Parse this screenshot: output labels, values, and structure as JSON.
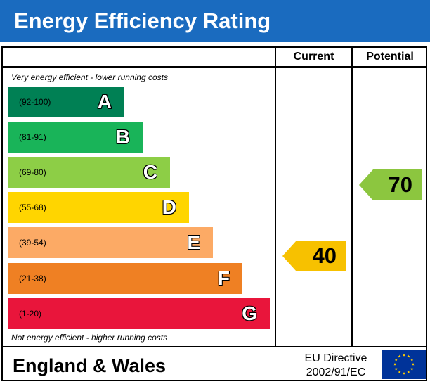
{
  "header": {
    "title": "Energy Efficiency Rating"
  },
  "columns": {
    "current": "Current",
    "potential": "Potential"
  },
  "notes": {
    "top": "Very energy efficient - lower running costs",
    "bottom": "Not energy efficient - higher running costs"
  },
  "bands": [
    {
      "range": "(92-100)",
      "letter": "A",
      "color": "#008054"
    },
    {
      "range": "(81-91)",
      "letter": "B",
      "color": "#19b459"
    },
    {
      "range": "(69-80)",
      "letter": "C",
      "color": "#8dce46"
    },
    {
      "range": "(55-68)",
      "letter": "D",
      "color": "#ffd500"
    },
    {
      "range": "(39-54)",
      "letter": "E",
      "color": "#fcaa65"
    },
    {
      "range": "(21-38)",
      "letter": "F",
      "color": "#ef8023"
    },
    {
      "range": "(1-20)",
      "letter": "G",
      "color": "#e9153b"
    }
  ],
  "current": {
    "value": "40",
    "band": "E",
    "color": "#f7c100"
  },
  "potential": {
    "value": "70",
    "band": "C",
    "color": "#8cc63f"
  },
  "footer": {
    "region": "England & Wales",
    "directive_line1": "EU Directive",
    "directive_line2": "2002/91/EC"
  },
  "icons": {
    "flag": "eu-flag-icon"
  }
}
